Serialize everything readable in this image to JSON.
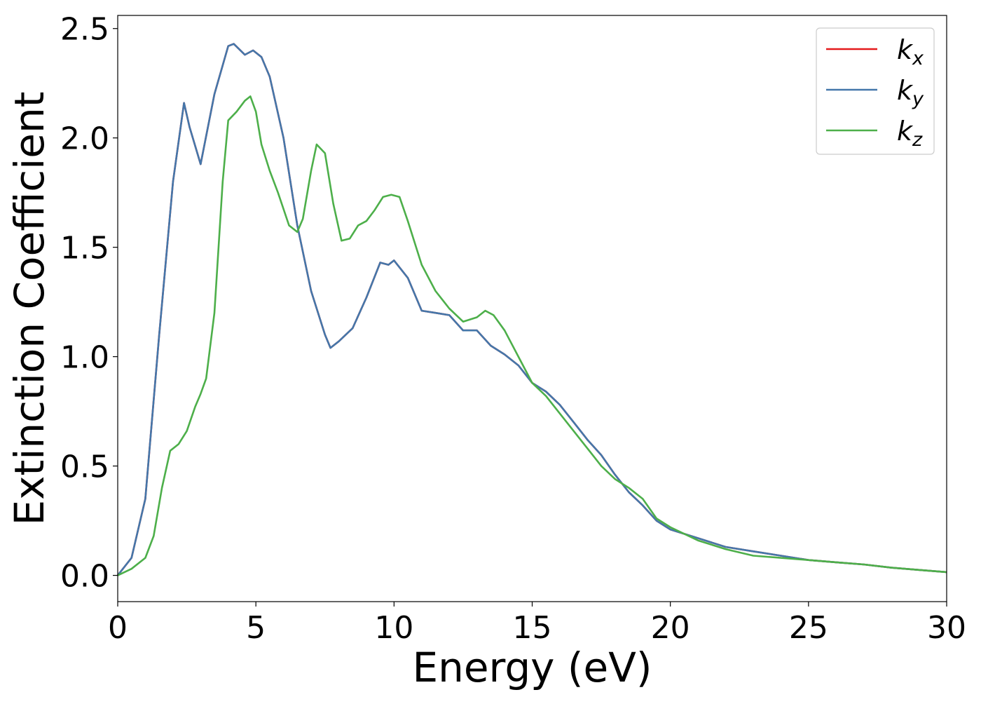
{
  "chart_data": {
    "type": "line",
    "title": "",
    "xlabel": "Energy (eV)",
    "ylabel": "Extinction Coefficient",
    "xlim": [
      0,
      30
    ],
    "ylim": [
      -0.12,
      2.56
    ],
    "xticks": [
      0,
      5,
      10,
      15,
      20,
      25,
      30
    ],
    "xtick_labels": [
      "0",
      "5",
      "10",
      "15",
      "20",
      "25",
      "30"
    ],
    "yticks": [
      0.0,
      0.5,
      1.0,
      1.5,
      2.0,
      2.5
    ],
    "ytick_labels": [
      "0.0",
      "0.5",
      "1.0",
      "1.5",
      "2.0",
      "2.5"
    ],
    "grid": false,
    "legend_position": "top-right",
    "series": [
      {
        "name": "k_x",
        "base": "k",
        "sub": "x",
        "color": "#e41a1c",
        "x": [
          0,
          0.5,
          1,
          1.5,
          2,
          2.4,
          2.6,
          3,
          3.5,
          4,
          4.2,
          4.6,
          4.9,
          5.2,
          5.5,
          6,
          6.5,
          7,
          7.5,
          7.7,
          8,
          8.5,
          9,
          9.5,
          9.8,
          10,
          10.5,
          11,
          11.5,
          12,
          12.5,
          13,
          13.5,
          14,
          14.5,
          15,
          15.5,
          16,
          16.5,
          17,
          17.5,
          18,
          18.5,
          19,
          19.5,
          20,
          21,
          22,
          23,
          24,
          25,
          26,
          27,
          28,
          29,
          30
        ],
        "y": [
          0,
          0.08,
          0.35,
          1.1,
          1.8,
          2.16,
          2.05,
          1.88,
          2.2,
          2.42,
          2.43,
          2.38,
          2.4,
          2.37,
          2.28,
          2.0,
          1.6,
          1.3,
          1.1,
          1.04,
          1.07,
          1.13,
          1.27,
          1.43,
          1.42,
          1.44,
          1.36,
          1.21,
          1.2,
          1.19,
          1.12,
          1.12,
          1.05,
          1.01,
          0.96,
          0.88,
          0.84,
          0.78,
          0.7,
          0.62,
          0.55,
          0.46,
          0.38,
          0.32,
          0.25,
          0.21,
          0.17,
          0.13,
          0.11,
          0.09,
          0.07,
          0.06,
          0.05,
          0.035,
          0.025,
          0.015
        ]
      },
      {
        "name": "k_y",
        "base": "k",
        "sub": "y",
        "color": "#4477aa",
        "x": [
          0,
          0.5,
          1,
          1.5,
          2,
          2.4,
          2.6,
          3,
          3.5,
          4,
          4.2,
          4.6,
          4.9,
          5.2,
          5.5,
          6,
          6.5,
          7,
          7.5,
          7.7,
          8,
          8.5,
          9,
          9.5,
          9.8,
          10,
          10.5,
          11,
          11.5,
          12,
          12.5,
          13,
          13.5,
          14,
          14.5,
          15,
          15.5,
          16,
          16.5,
          17,
          17.5,
          18,
          18.5,
          19,
          19.5,
          20,
          21,
          22,
          23,
          24,
          25,
          26,
          27,
          28,
          29,
          30
        ],
        "y": [
          0,
          0.08,
          0.35,
          1.1,
          1.8,
          2.16,
          2.05,
          1.88,
          2.2,
          2.42,
          2.43,
          2.38,
          2.4,
          2.37,
          2.28,
          2.0,
          1.6,
          1.3,
          1.1,
          1.04,
          1.07,
          1.13,
          1.27,
          1.43,
          1.42,
          1.44,
          1.36,
          1.21,
          1.2,
          1.19,
          1.12,
          1.12,
          1.05,
          1.01,
          0.96,
          0.88,
          0.84,
          0.78,
          0.7,
          0.62,
          0.55,
          0.46,
          0.38,
          0.32,
          0.25,
          0.21,
          0.17,
          0.13,
          0.11,
          0.09,
          0.07,
          0.06,
          0.05,
          0.035,
          0.025,
          0.015
        ]
      },
      {
        "name": "k_z",
        "base": "k",
        "sub": "z",
        "color": "#4daf4a",
        "x": [
          0,
          0.5,
          1,
          1.3,
          1.6,
          1.9,
          2.2,
          2.5,
          2.8,
          3,
          3.2,
          3.5,
          3.8,
          4,
          4.3,
          4.6,
          4.8,
          5,
          5.2,
          5.5,
          5.8,
          6.2,
          6.5,
          6.7,
          7,
          7.2,
          7.5,
          7.8,
          8.1,
          8.4,
          8.7,
          9,
          9.3,
          9.6,
          9.9,
          10.2,
          10.5,
          11,
          11.5,
          12,
          12.5,
          13,
          13.3,
          13.6,
          14,
          14.5,
          15,
          15.5,
          16,
          16.5,
          17,
          17.5,
          18,
          18.5,
          19,
          19.5,
          20,
          21,
          22,
          23,
          24,
          25,
          26,
          27,
          28,
          29,
          30
        ],
        "y": [
          0,
          0.03,
          0.08,
          0.18,
          0.4,
          0.57,
          0.6,
          0.66,
          0.77,
          0.83,
          0.9,
          1.2,
          1.8,
          2.08,
          2.12,
          2.17,
          2.19,
          2.12,
          1.97,
          1.85,
          1.75,
          1.6,
          1.57,
          1.63,
          1.85,
          1.97,
          1.93,
          1.7,
          1.53,
          1.54,
          1.6,
          1.62,
          1.67,
          1.73,
          1.74,
          1.73,
          1.62,
          1.42,
          1.3,
          1.22,
          1.16,
          1.18,
          1.21,
          1.19,
          1.12,
          1.0,
          0.88,
          0.82,
          0.74,
          0.66,
          0.58,
          0.5,
          0.44,
          0.4,
          0.35,
          0.26,
          0.22,
          0.16,
          0.12,
          0.09,
          0.08,
          0.07,
          0.06,
          0.05,
          0.035,
          0.025,
          0.015
        ]
      }
    ]
  }
}
